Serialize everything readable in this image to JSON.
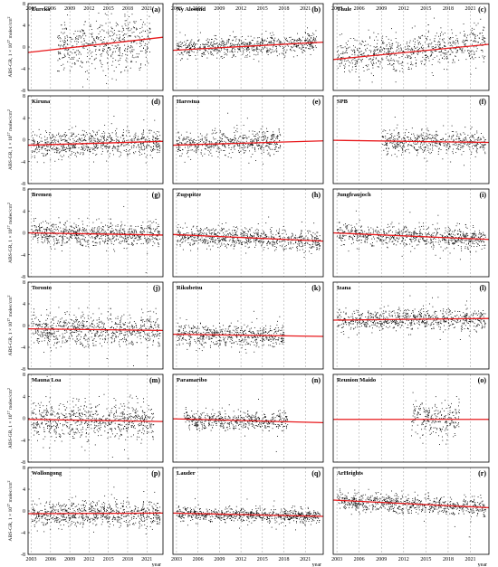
{
  "chart_data": {
    "type": "scatter",
    "description_labels": {
      "y_axis_label": "ABS-GR, 1 × 10",
      "y_axis_exponent": "17",
      "y_axis_unit": " molec/cm",
      "y_axis_unit_power": "2",
      "x_unit": "year"
    },
    "x_ticks": [
      2003,
      2006,
      2009,
      2012,
      2015,
      2018,
      2021
    ],
    "x_range": [
      2002.5,
      2023.5
    ],
    "y_ticks": [
      8,
      4,
      0,
      -4,
      -8
    ],
    "y_range": [
      -8,
      8
    ],
    "panels": [
      {
        "name": "Eureka",
        "label": "(a)",
        "trend_start": -1.0,
        "trend_end": 1.8,
        "data_start": 2007.0,
        "data_end": 2021.5,
        "spread": 2.2,
        "mean_start": -0.5,
        "mean_end": 1.5
      },
      {
        "name": "Ny Alesund",
        "label": "(b)",
        "trend_start": -0.6,
        "trend_end": 0.9,
        "data_start": 2003.0,
        "data_end": 2022.5,
        "spread": 0.9,
        "mean_start": -0.3,
        "mean_end": 0.8
      },
      {
        "name": "Thule",
        "label": "(c)",
        "trend_start": -2.3,
        "trend_end": 0.5,
        "data_start": 2003.0,
        "data_end": 2023.0,
        "spread": 1.6,
        "mean_start": -2.0,
        "mean_end": 0.6
      },
      {
        "name": "Kiruna",
        "label": "(d)",
        "trend_start": -1.0,
        "trend_end": -0.3,
        "data_start": 2003.0,
        "data_end": 2023.0,
        "spread": 1.1,
        "mean_start": -0.9,
        "mean_end": -0.3
      },
      {
        "name": "Harestua",
        "label": "(e)",
        "trend_start": -1.0,
        "trend_end": -0.2,
        "data_start": 2003.0,
        "data_end": 2017.5,
        "spread": 1.0,
        "mean_start": -0.8,
        "mean_end": -0.3
      },
      {
        "name": "SPB",
        "label": "(f)",
        "trend_start": -0.1,
        "trend_end": -0.5,
        "data_start": 2009.0,
        "data_end": 2023.0,
        "spread": 1.0,
        "mean_start": -0.2,
        "mean_end": -0.5
      },
      {
        "name": "Bremen",
        "label": "(g)",
        "trend_start": 0.0,
        "trend_end": -0.4,
        "data_start": 2003.0,
        "data_end": 2023.0,
        "spread": 1.0,
        "mean_start": 0.0,
        "mean_end": -0.4
      },
      {
        "name": "Zugspitze",
        "label": "(h)",
        "trend_start": -0.3,
        "trend_end": -1.5,
        "data_start": 2003.0,
        "data_end": 2023.0,
        "spread": 0.9,
        "mean_start": -0.4,
        "mean_end": -1.4
      },
      {
        "name": "Jungfraujoch",
        "label": "(i)",
        "trend_start": 0.0,
        "trend_end": -1.2,
        "data_start": 2003.0,
        "data_end": 2023.0,
        "spread": 0.9,
        "mean_start": 0.0,
        "mean_end": -1.2
      },
      {
        "name": "Toronto",
        "label": "(j)",
        "trend_start": -0.6,
        "trend_end": -0.9,
        "data_start": 2003.0,
        "data_end": 2023.0,
        "spread": 1.4,
        "mean_start": -0.6,
        "mean_end": -0.9
      },
      {
        "name": "Rikubetsu",
        "label": "(k)",
        "trend_start": -1.6,
        "trend_end": -2.0,
        "data_start": 2003.0,
        "data_end": 2018.0,
        "spread": 1.0,
        "mean_start": -1.6,
        "mean_end": -1.9
      },
      {
        "name": "Izana",
        "label": "(l)",
        "trend_start": 1.0,
        "trend_end": 1.3,
        "data_start": 2003.0,
        "data_end": 2023.0,
        "spread": 0.9,
        "mean_start": 1.0,
        "mean_end": 1.3
      },
      {
        "name": "Mauna Loa",
        "label": "(m)",
        "trend_start": -0.2,
        "trend_end": -0.6,
        "data_start": 2003.0,
        "data_end": 2022.0,
        "spread": 1.6,
        "mean_start": -0.2,
        "mean_end": -0.6
      },
      {
        "name": "Paramaribo",
        "label": "(n)",
        "trend_start": -0.1,
        "trend_end": -0.8,
        "data_start": 2004.0,
        "data_end": 2018.5,
        "spread": 0.8,
        "mean_start": -0.1,
        "mean_end": -0.7
      },
      {
        "name": "Reunion Maido",
        "label": "(o)",
        "trend_start": -0.2,
        "trend_end": -0.2,
        "data_start": 2013.0,
        "data_end": 2019.5,
        "spread": 1.5,
        "mean_start": -0.2,
        "mean_end": -0.2
      },
      {
        "name": "Wollongong",
        "label": "(p)",
        "trend_start": -0.5,
        "trend_end": -0.4,
        "data_start": 2003.0,
        "data_end": 2023.0,
        "spread": 1.1,
        "mean_start": -0.5,
        "mean_end": -0.4
      },
      {
        "name": "Lauder",
        "label": "(q)",
        "trend_start": -0.4,
        "trend_end": -1.0,
        "data_start": 2003.0,
        "data_end": 2023.0,
        "spread": 0.6,
        "mean_start": -0.4,
        "mean_end": -1.0
      },
      {
        "name": "ArHeights",
        "label": "(r)",
        "trend_start": 2.0,
        "trend_end": 0.6,
        "data_start": 2003.0,
        "data_end": 2023.0,
        "spread": 0.8,
        "mean_start": 2.0,
        "mean_end": 0.6
      }
    ],
    "colors": {
      "trend": "#e8191c",
      "points": "#000000",
      "vgrid": "#9a9a9a",
      "frame": "#000000"
    }
  }
}
